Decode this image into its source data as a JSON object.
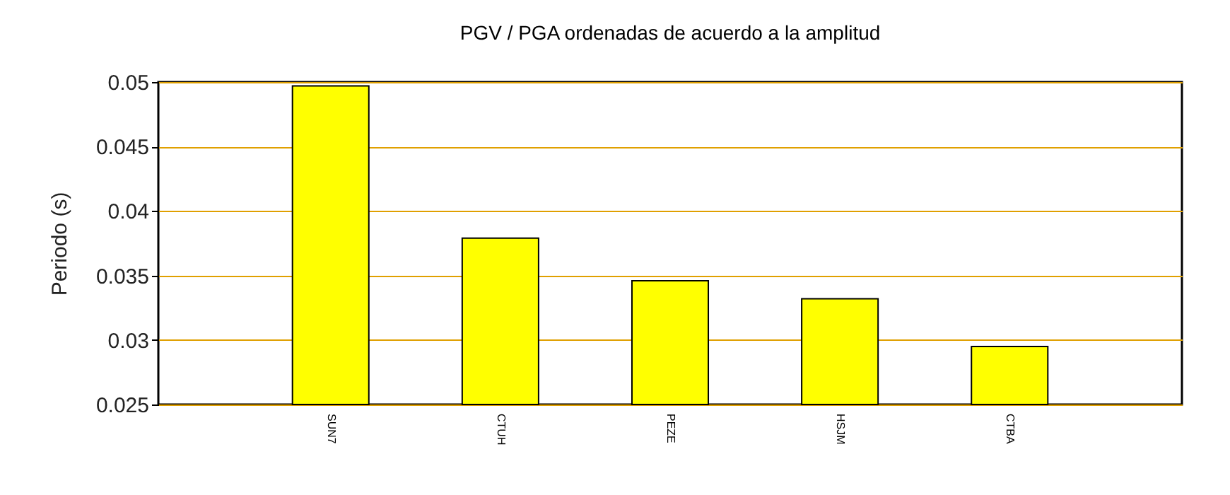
{
  "chart_data": {
    "type": "bar",
    "title": "PGV / PGA ordenadas de acuerdo a la amplitud",
    "ylabel": "Periodo (s)",
    "categories": [
      "SUN7",
      "CTUH",
      "PEZE",
      "HSJM",
      "CTBA"
    ],
    "values": [
      0.0497,
      0.0379,
      0.0346,
      0.0332,
      0.0295
    ],
    "color": "#ffff00",
    "ylim": [
      0.025,
      0.05
    ],
    "yticks": [
      0.025,
      0.03,
      0.035,
      0.04,
      0.045,
      0.05
    ],
    "grid": "y"
  }
}
